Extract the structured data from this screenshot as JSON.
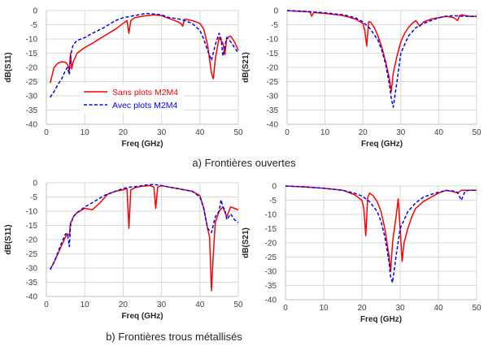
{
  "captions": {
    "top": "a) Frontières ouvertes",
    "bottom": "b) Frontières trous métallisés"
  },
  "legend": {
    "series1": "Sans plots M2M4",
    "series2": "Avec plots M2M4"
  },
  "colors": {
    "sans": "#ff0000",
    "avec": "#0000ff",
    "grid": "#d9d9d9",
    "axis": "#bfbfbf"
  },
  "chart_data": [
    {
      "type": "line",
      "position_word": "top-left",
      "xlabel": "Freq (GHz)",
      "ylabel": "dB(S11)",
      "xlim": [
        0,
        50
      ],
      "ylim": [
        -40,
        0
      ],
      "xticks": [
        0,
        10,
        20,
        30,
        40,
        50
      ],
      "yticks": [
        0,
        -5,
        -10,
        -15,
        -20,
        -25,
        -30,
        -35,
        -40
      ],
      "grid": true,
      "legend": "inside-lower-left",
      "series": [
        {
          "name": "Sans plots M2M4",
          "style": "solid",
          "color": "#ff0000",
          "x": [
            1,
            2,
            3,
            4,
            5,
            5.5,
            6,
            6.3,
            6.6,
            7,
            8,
            10,
            12,
            15,
            18,
            20,
            21,
            21.5,
            22,
            23,
            25,
            28,
            30,
            32,
            34,
            35,
            35.5,
            36,
            38,
            40,
            41,
            42,
            43,
            43.5,
            44,
            45,
            46,
            46.5,
            47,
            48,
            49,
            50
          ],
          "y": [
            -25.5,
            -20,
            -18.5,
            -18,
            -18.2,
            -19,
            -21,
            -15,
            -20.5,
            -18,
            -15,
            -13,
            -11.5,
            -9,
            -6.5,
            -4.5,
            -3.5,
            -8,
            -3.5,
            -2.5,
            -2,
            -1.5,
            -1.8,
            -2.8,
            -3.8,
            -4.5,
            -5.5,
            -3,
            -3.5,
            -4.5,
            -6.5,
            -12,
            -22,
            -24,
            -17,
            -9.5,
            -11.5,
            -15.5,
            -9.5,
            -9,
            -11,
            -14
          ]
        },
        {
          "name": "Avec plots M2M4",
          "style": "dashed",
          "color": "#0000ff",
          "x": [
            1,
            2,
            3,
            4,
            5,
            5.5,
            6,
            6.3,
            6.6,
            7,
            8,
            10,
            12,
            15,
            18,
            20,
            22,
            24,
            26,
            28,
            30,
            32,
            34,
            36,
            38,
            40,
            41,
            42,
            43,
            44,
            45,
            45.5,
            46,
            46.5,
            47,
            48,
            49,
            50
          ],
          "y": [
            -30.5,
            -28.5,
            -26,
            -24,
            -21,
            -20,
            -22.5,
            -16,
            -14,
            -12,
            -10.5,
            -9.5,
            -8,
            -6,
            -3.5,
            -2.5,
            -2,
            -1.5,
            -1,
            -1.2,
            -1.5,
            -2.5,
            -2.8,
            -3.5,
            -4.5,
            -7,
            -10,
            -14,
            -17.5,
            -12,
            -8,
            -10,
            -16,
            -12.5,
            -9.5,
            -11,
            -13,
            -15
          ]
        }
      ]
    },
    {
      "type": "line",
      "position_word": "top-right",
      "xlabel": "Freq (GHz)",
      "ylabel": "dB(S21)",
      "xlim": [
        0,
        50
      ],
      "ylim": [
        -40,
        0
      ],
      "xticks": [
        0,
        10,
        20,
        30,
        40,
        50
      ],
      "yticks": [
        0,
        -5,
        -10,
        -15,
        -20,
        -25,
        -30,
        -35,
        -40
      ],
      "grid": true,
      "series": [
        {
          "name": "Sans plots M2M4",
          "style": "solid",
          "color": "#ff0000",
          "x": [
            0,
            2,
            4,
            6,
            6.5,
            7,
            8,
            10,
            12,
            14,
            16,
            18,
            20,
            20.5,
            21,
            21.5,
            22,
            23,
            24,
            25,
            26,
            27,
            27.5,
            28,
            29,
            30,
            31,
            32,
            33,
            34,
            35,
            36,
            38,
            40,
            42,
            44,
            45,
            45.5,
            46,
            48,
            50
          ],
          "y": [
            0,
            -0.2,
            -0.3,
            -0.5,
            -2,
            -0.7,
            -0.8,
            -1,
            -1.3,
            -1.6,
            -2.2,
            -3,
            -4.5,
            -7,
            -12.5,
            -4,
            -4,
            -6,
            -9,
            -13,
            -18,
            -24,
            -28.5,
            -22,
            -16,
            -11,
            -8,
            -6,
            -4.5,
            -3.5,
            -5.5,
            -4,
            -3,
            -2.5,
            -2,
            -2.5,
            -3.5,
            -1.8,
            -1.5,
            -2,
            -2
          ]
        },
        {
          "name": "Avec plots M2M4",
          "style": "dashed",
          "color": "#0000ff",
          "x": [
            0,
            5,
            10,
            15,
            18,
            20,
            22,
            24,
            25,
            26,
            27,
            27.5,
            28,
            29,
            30,
            32,
            34,
            36,
            38,
            40,
            42,
            44,
            46,
            48,
            50
          ],
          "y": [
            0,
            -0.3,
            -0.8,
            -1.5,
            -2.5,
            -4,
            -6.5,
            -10.5,
            -14,
            -19,
            -26,
            -31,
            -34,
            -25,
            -15,
            -9,
            -6,
            -4.5,
            -3.5,
            -2.5,
            -2,
            -1.8,
            -2,
            -2,
            -2.2
          ]
        }
      ]
    },
    {
      "type": "line",
      "position_word": "bottom-left",
      "xlabel": "Freq (GHz)",
      "ylabel": "dB(S11)",
      "xlim": [
        0,
        50
      ],
      "ylim": [
        -40,
        0
      ],
      "xticks": [
        0,
        10,
        20,
        30,
        40,
        50
      ],
      "yticks": [
        0,
        -5,
        -10,
        -15,
        -20,
        -25,
        -30,
        -35,
        -40
      ],
      "grid": true,
      "series": [
        {
          "name": "Sans plots M2M4",
          "style": "solid",
          "color": "#ff0000",
          "x": [
            1,
            2,
            3,
            4,
            5,
            5.5,
            6,
            6.3,
            6.6,
            7,
            8,
            10,
            12,
            14,
            16,
            18,
            20,
            21,
            21.5,
            22,
            23,
            25,
            27,
            28,
            28.5,
            29,
            30,
            32,
            34,
            36,
            38,
            40,
            41,
            42,
            42.5,
            43,
            43.5,
            44,
            45,
            46,
            47,
            48,
            49,
            50
          ],
          "y": [
            -30.5,
            -28,
            -25,
            -22,
            -19,
            -18,
            -18.5,
            -14,
            -13.5,
            -12,
            -10.5,
            -9,
            -9.5,
            -7,
            -4,
            -3,
            -2.5,
            -2,
            -16,
            -2.5,
            -1.8,
            -1.2,
            -1,
            -1.5,
            -9,
            -1.5,
            -1,
            -1.5,
            -2,
            -2.5,
            -3,
            -4.5,
            -9,
            -16,
            -19,
            -38,
            -25,
            -14,
            -10,
            -8.5,
            -12,
            -8.5,
            -9,
            -9.5
          ]
        },
        {
          "name": "Avec plots M2M4",
          "style": "dashed",
          "color": "#0000ff",
          "x": [
            1,
            2,
            3,
            4,
            5,
            5.5,
            6,
            6.3,
            6.6,
            7,
            8,
            10,
            12,
            15,
            18,
            20,
            22,
            24,
            26,
            28,
            30,
            32,
            34,
            36,
            38,
            40,
            41,
            42,
            43,
            44,
            45,
            45.5,
            46,
            46.5,
            47,
            48,
            49,
            50
          ],
          "y": [
            -30.5,
            -28,
            -24.5,
            -21,
            -18,
            -18,
            -22.5,
            -15,
            -13.5,
            -12,
            -10.5,
            -8.5,
            -7,
            -4.5,
            -3,
            -2,
            -1.5,
            -1.2,
            -0.8,
            -0.6,
            -1,
            -1.5,
            -2,
            -2.5,
            -3,
            -5,
            -9,
            -16,
            -17.5,
            -12,
            -10,
            -6,
            -8.5,
            -9.5,
            -13,
            -11,
            -13,
            -14
          ]
        }
      ]
    },
    {
      "type": "line",
      "position_word": "bottom-right",
      "xlabel": "Freq (GHz)",
      "ylabel": "dB(S21)",
      "xlim": [
        0,
        50
      ],
      "ylim": [
        -40,
        0
      ],
      "xticks": [
        0,
        10,
        20,
        30,
        40,
        50
      ],
      "yticks": [
        0,
        -5,
        -10,
        -15,
        -20,
        -25,
        -30,
        -35,
        -40
      ],
      "grid": true,
      "series": [
        {
          "name": "Sans plots M2M4",
          "style": "solid",
          "color": "#ff0000",
          "x": [
            0,
            5,
            10,
            15,
            18,
            20,
            20.5,
            21,
            21.5,
            22,
            23,
            24,
            25,
            26,
            27,
            27.5,
            28,
            29,
            29.5,
            30,
            30.5,
            31,
            32,
            33,
            34,
            36,
            38,
            40,
            42,
            44,
            45,
            46,
            48,
            50
          ],
          "y": [
            0,
            -0.3,
            -0.8,
            -1.5,
            -3,
            -5,
            -8,
            -17.5,
            -4,
            -2.5,
            -3.5,
            -5.5,
            -9,
            -15,
            -24,
            -30,
            -20,
            -10,
            -4.5,
            -15,
            -26.5,
            -20,
            -15,
            -11,
            -8,
            -5.5,
            -4,
            -2.5,
            -1.5,
            -2,
            -2.5,
            -1.5,
            -1.5,
            -1.5
          ]
        },
        {
          "name": "Avec plots M2M4",
          "style": "dashed",
          "color": "#0000ff",
          "x": [
            0,
            5,
            10,
            15,
            18,
            20,
            22,
            24,
            25,
            26,
            27,
            27.5,
            28,
            29,
            30,
            32,
            34,
            36,
            38,
            40,
            42,
            44,
            45,
            46,
            47,
            48,
            50
          ],
          "y": [
            0,
            -0.3,
            -0.8,
            -1.5,
            -2.5,
            -3.5,
            -5.5,
            -9,
            -12.5,
            -18,
            -26,
            -32,
            -34,
            -24,
            -15,
            -9,
            -6,
            -4,
            -3,
            -2.2,
            -1.6,
            -1.8,
            -2.2,
            -5,
            -1.8,
            -1.5,
            -1.5
          ]
        }
      ]
    }
  ]
}
